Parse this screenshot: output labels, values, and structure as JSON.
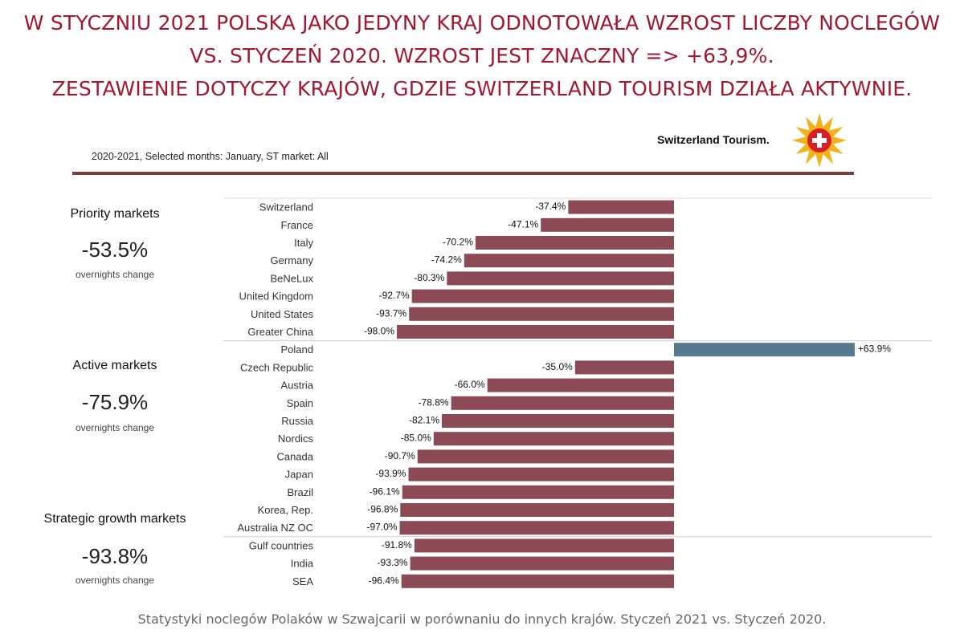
{
  "headline": {
    "line1": "W STYCZNIU 2021 POLSKA JAKO JEDYNY KRAJ ODNOTOWAŁA WZROST LICZBY NOCLEGÓW",
    "line2": "VS. STYCZEŃ 2020. WZROST JEST ZNACZNY => +63,9%.",
    "line3": "ZESTAWIENIE DOTYCZY KRAJÓW, GDZIE SWITZERLAND TOURISM DZIAŁA AKTYWNIE."
  },
  "subtitle": "2020-2021, Selected months: January, ST market: All",
  "brand": "Switzerland Tourism.",
  "groups": [
    {
      "name": "Priority markets",
      "value": "-53.5%",
      "caption": "overnights change"
    },
    {
      "name": "Active markets",
      "value": "-75.9%",
      "caption": "overnights change"
    },
    {
      "name": "Strategic growth markets",
      "value": "-93.8%",
      "caption": "overnights change"
    }
  ],
  "colors": {
    "headline": "#a3172f",
    "negative_bar": "#8b4a56",
    "positive_bar": "#557a8e",
    "rule": "#7a3e3e"
  },
  "chart_data": {
    "type": "bar",
    "orientation": "horizontal",
    "categories": [
      "Switzerland",
      "France",
      "Italy",
      "Germany",
      "BeNeLux",
      "United Kingdom",
      "United States",
      "Greater China",
      "Poland",
      "Czech Republic",
      "Austria",
      "Spain",
      "Russia",
      "Nordics",
      "Canada",
      "Japan",
      "Brazil",
      "Korea, Rep.",
      "Australia NZ OC",
      "Gulf countries",
      "India",
      "SEA"
    ],
    "values": [
      -37.4,
      -47.1,
      -70.2,
      -74.2,
      -80.3,
      -92.7,
      -93.7,
      -98.0,
      63.9,
      -35.0,
      -66.0,
      -78.8,
      -82.1,
      -85.0,
      -90.7,
      -93.9,
      -96.1,
      -96.8,
      -97.0,
      -91.8,
      -93.3,
      -96.4
    ],
    "labels": [
      "-37.4%",
      "-47.1%",
      "-70.2%",
      "-74.2%",
      "-80.3%",
      "-92.7%",
      "-93.7%",
      "-98.0%",
      "+63.9%",
      "-35.0%",
      "-66.0%",
      "-78.8%",
      "-82.1%",
      "-85.0%",
      "-90.7%",
      "-93.9%",
      "-96.1%",
      "-96.8%",
      "-97.0%",
      "-91.8%",
      "-93.3%",
      "-96.4%"
    ],
    "group_breaks_after": [
      7,
      18
    ],
    "xlim": [
      -100,
      70
    ]
  },
  "caption": "Statystyki noclegów Polaków w Szwajcarii w porównaniu do innych krajów. Styczeń 2021 vs. Styczeń 2020."
}
